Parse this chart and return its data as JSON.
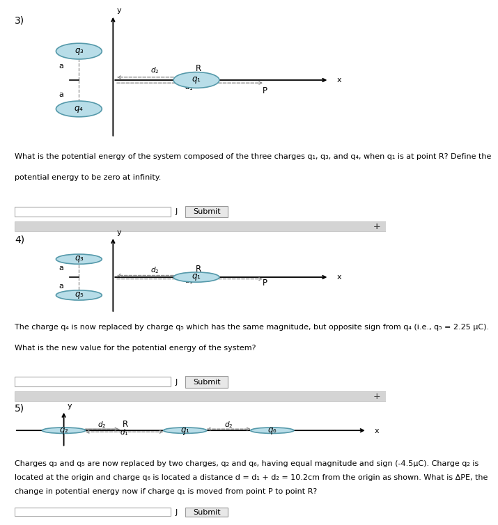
{
  "background_color": "#ffffff",
  "circle_fill": "#b8dde8",
  "circle_edge": "#5599aa",
  "gray_bar_color": "#d4d4d4",
  "gray_bar_edge": "#bbbbbb",
  "input_box_color": "#ffffff",
  "input_box_edge": "#aaaaaa",
  "submit_btn_color": "#e8e8e8",
  "submit_btn_edge": "#999999",
  "dot_sep_color": "#aaaaaa",
  "sections": [
    {
      "number": "3)",
      "question_line1": "What is the potential energy of the system composed of the three charges q₁, q₃, and q₄, when q₁ is at point R? Define the",
      "question_line2": "potential energy to be zero at infinity.",
      "upper_charge": "q₃",
      "lower_charge": "q₄",
      "mid_charge": "q₁",
      "diagram_type": "vertical_pair"
    },
    {
      "number": "4)",
      "question_line1": "The charge q₄ is now replaced by charge q₅ which has the same magnitude, but opposite sign from q₄ (i.e., q₅ = 2.25 μC).",
      "question_line2": "What is the new value for the potential energy of the system?",
      "upper_charge": "q₃",
      "lower_charge": "q₅",
      "mid_charge": "q₁",
      "diagram_type": "vertical_pair"
    },
    {
      "number": "5)",
      "question_line1": "Charges q₃ and q₅ are now replaced by two charges, q₂ and q₆, having equal magnitude and sign (-4.5μC). Charge q₂ is",
      "question_line2": "located at the origin and charge q₆ is located a distance d = d₁ + d₂ = 10.2cm from the origin as shown. What is ΔPE, the",
      "question_line3": "change in potential energy now if charge q₁ is moved from point P to point R?",
      "left_charge": "q₂",
      "mid_charge": "q₁",
      "right_charge": "q₆",
      "diagram_type": "horizontal_three"
    }
  ]
}
